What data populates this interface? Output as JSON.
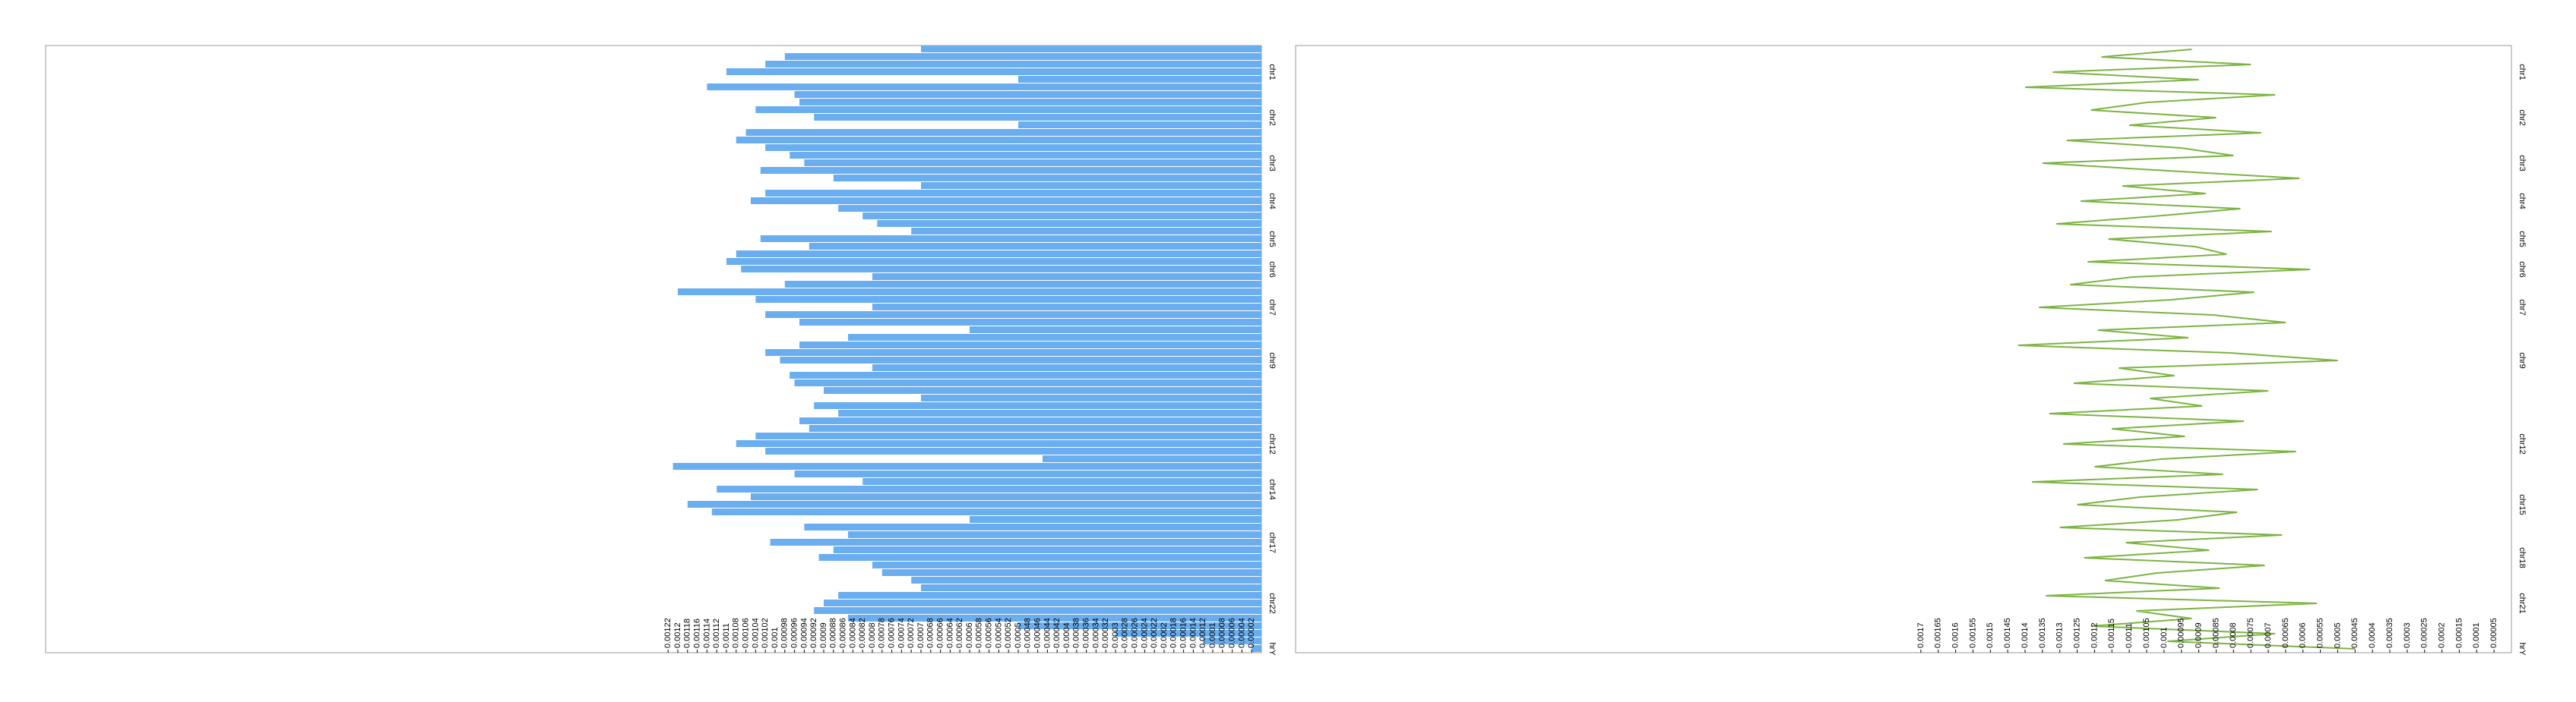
{
  "chart_data": [
    {
      "type": "barh",
      "color": "#6aaef0",
      "xlim": [
        0.0025,
        0
      ],
      "xticks": [
        0.00122,
        0.0012,
        0.00118,
        0.00116,
        0.00114,
        0.00112,
        0.0011,
        0.00108,
        0.00106,
        0.00104,
        0.00102,
        0.001,
        0.00098,
        0.00096,
        0.00094,
        0.00092,
        0.0009,
        0.00088,
        0.00086,
        0.00084,
        0.00082,
        0.0008,
        0.00078,
        0.00076,
        0.00074,
        0.00072,
        0.0007,
        0.00068,
        0.00066,
        0.00064,
        0.00062,
        0.0006,
        0.00058,
        0.00056,
        0.00054,
        0.00052,
        0.0005,
        0.00048,
        0.00046,
        0.00044,
        0.00042,
        0.0004,
        0.00038,
        0.00036,
        0.00034,
        0.00032,
        0.0003,
        0.00028,
        0.00026,
        0.00024,
        0.00022,
        0.0002,
        0.00018,
        0.00016,
        0.00014,
        0.00012,
        0.0001,
        8e-05,
        6e-05,
        4e-05,
        2e-05
      ],
      "categories": [
        null,
        null,
        null,
        "chr1",
        null,
        null,
        null,
        null,
        null,
        "chr2",
        null,
        null,
        null,
        null,
        null,
        "chr3",
        null,
        null,
        null,
        null,
        "chr4",
        null,
        null,
        null,
        null,
        "chr5",
        null,
        null,
        null,
        "chr6",
        null,
        null,
        null,
        null,
        "chr7",
        null,
        null,
        null,
        null,
        null,
        null,
        "chr9",
        null,
        null,
        null,
        null,
        null,
        null,
        null,
        null,
        null,
        null,
        "chr12",
        null,
        null,
        null,
        null,
        null,
        "chr14",
        null,
        null,
        null,
        null,
        null,
        null,
        "chr17",
        null,
        null,
        null,
        null,
        null,
        null,
        null,
        "chr22",
        null,
        null,
        null,
        null,
        null,
        "hrY"
      ],
      "values": [
        0.0007,
        0.00098,
        0.00102,
        0.0011,
        0.0005,
        0.00114,
        0.00096,
        0.00095,
        0.00104,
        0.00092,
        0.0005,
        0.00106,
        0.00108,
        0.00102,
        0.00097,
        0.00094,
        0.00103,
        0.00088,
        0.0007,
        0.00102,
        0.00105,
        0.00087,
        0.00082,
        0.00079,
        0.00072,
        0.00103,
        0.00093,
        0.00108,
        0.0011,
        0.00107,
        0.0008,
        0.00098,
        0.0012,
        0.00104,
        0.0008,
        0.00102,
        0.00095,
        0.0006,
        0.00085,
        0.00095,
        0.00102,
        0.00099,
        0.0008,
        0.00097,
        0.00096,
        0.0009,
        0.0007,
        0.00092,
        0.00087,
        0.00095,
        0.00093,
        0.00104,
        0.00108,
        0.00102,
        0.00045,
        0.00121,
        0.00096,
        0.00082,
        0.00112,
        0.00105,
        0.00118,
        0.00113,
        0.0006,
        0.00094,
        0.00085,
        0.00101,
        0.00088,
        0.00091,
        0.0008,
        0.00078,
        0.00072,
        0.0007,
        0.00087,
        0.0009,
        0.00092,
        0.00085,
        0.0005,
        0.0003,
        0.00012,
        2e-05
      ]
    },
    {
      "type": "line",
      "color": "#7cb342",
      "xlim": [
        0.0035,
        0
      ],
      "xticks": [
        0.0017,
        0.00165,
        0.0016,
        0.00155,
        0.0015,
        0.00145,
        0.0014,
        0.00135,
        0.0013,
        0.00125,
        0.0012,
        0.00115,
        0.0011,
        0.00105,
        0.001,
        0.00095,
        0.0009,
        0.00085,
        0.0008,
        0.00075,
        0.0007,
        0.00065,
        0.0006,
        0.00055,
        0.0005,
        0.00045,
        0.0004,
        0.00035,
        0.0003,
        0.00025,
        0.0002,
        0.00015,
        0.0001,
        5e-05
      ],
      "categories": [
        null,
        null,
        null,
        "chr1",
        null,
        null,
        null,
        null,
        null,
        "chr2",
        null,
        null,
        null,
        null,
        null,
        "chr3",
        null,
        null,
        null,
        null,
        "chr4",
        null,
        null,
        null,
        null,
        "chr5",
        null,
        null,
        null,
        "chr6",
        null,
        null,
        null,
        null,
        "chr7",
        null,
        null,
        null,
        null,
        null,
        null,
        "chr9",
        null,
        null,
        null,
        null,
        null,
        null,
        null,
        null,
        null,
        null,
        "chr12",
        null,
        null,
        null,
        null,
        null,
        null,
        null,
        "chr15",
        null,
        null,
        null,
        null,
        null,
        null,
        "chr18",
        null,
        null,
        null,
        null,
        null,
        "chr21",
        null,
        null,
        null,
        null,
        null,
        "hrY"
      ],
      "values": [
        0.00092,
        0.00118,
        0.00075,
        0.00132,
        0.0009,
        0.0014,
        0.00068,
        0.00105,
        0.00121,
        0.00085,
        0.0011,
        0.00072,
        0.00128,
        0.00095,
        0.0008,
        0.00135,
        0.00099,
        0.00061,
        0.00112,
        0.00088,
        0.00124,
        0.00078,
        0.00103,
        0.00131,
        0.00069,
        0.00116,
        0.00091,
        0.00082,
        0.00122,
        0.00058,
        0.00109,
        0.00127,
        0.00074,
        0.00098,
        0.00136,
        0.00086,
        0.00065,
        0.00119,
        0.00093,
        0.00142,
        0.00081,
        0.0005,
        0.00113,
        0.00097,
        0.00126,
        0.0007,
        0.00104,
        0.00089,
        0.00133,
        0.00077,
        0.00115,
        0.00094,
        0.00129,
        0.00062,
        0.00101,
        0.0012,
        0.00083,
        0.00138,
        0.00073,
        0.00107,
        0.00125,
        0.00079,
        0.00096,
        0.0013,
        0.00066,
        0.00111,
        0.00087,
        0.00123,
        0.00071,
        0.00102,
        0.00117,
        0.00084,
        0.00134,
        0.00056,
        0.00108,
        0.00092,
        0.00121,
        0.00068,
        0.00099,
        0.00045
      ]
    }
  ]
}
